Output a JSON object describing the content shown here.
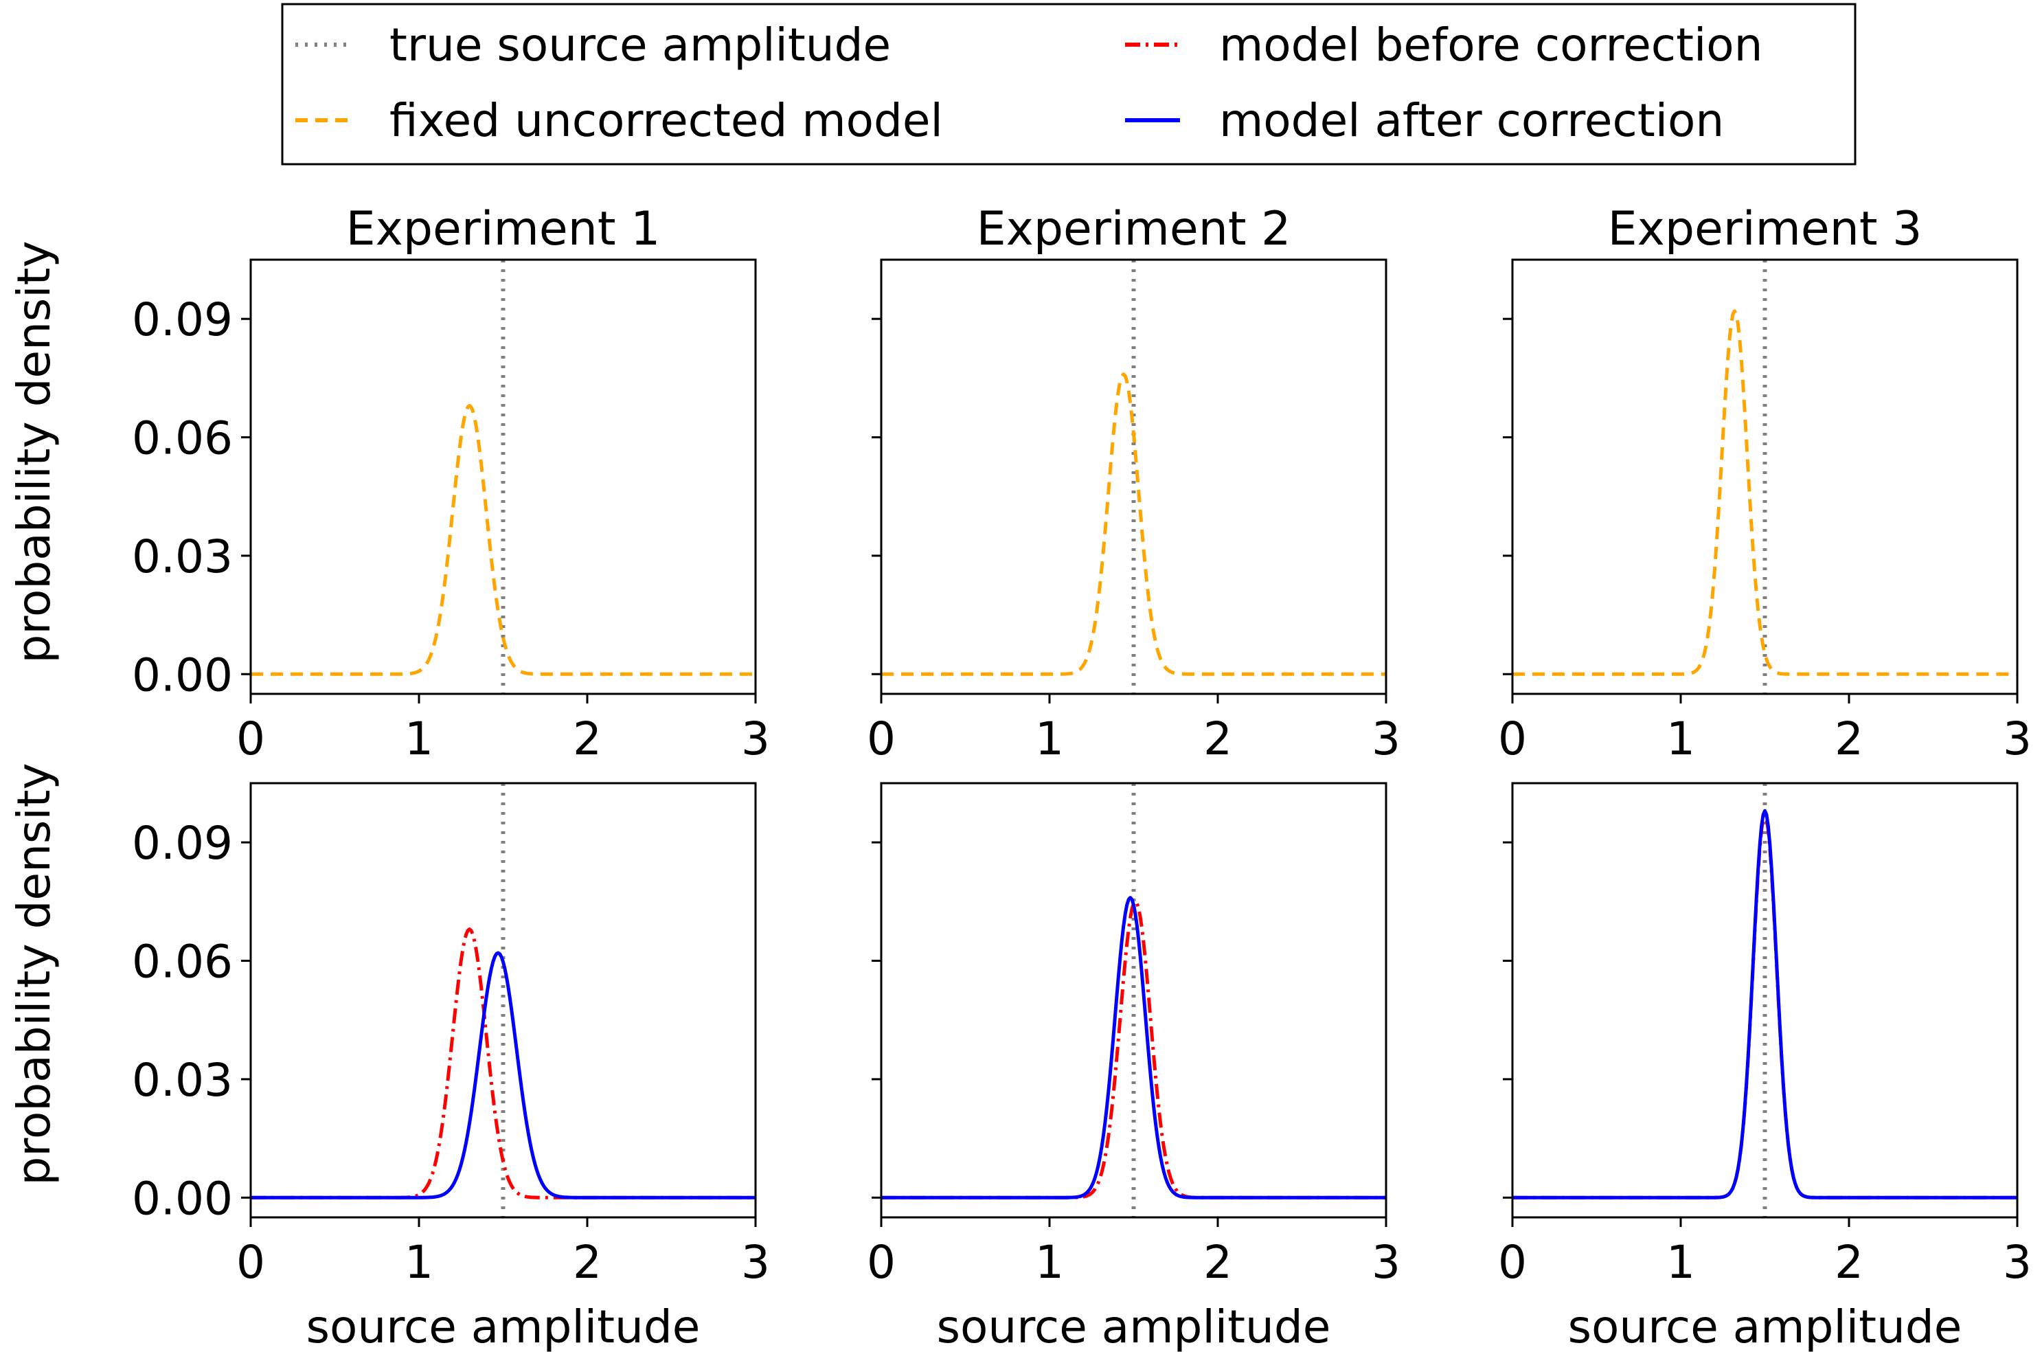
{
  "chart_data": {
    "type": "line",
    "layout": "2x3 grid",
    "legend": {
      "location": "top-center",
      "entries": [
        {
          "key": "true",
          "label": "true source amplitude",
          "color": "#808080",
          "style": "dotted"
        },
        {
          "key": "fixed",
          "label": "fixed uncorrected model",
          "color": "#FFA500",
          "style": "dashed"
        },
        {
          "key": "before",
          "label": "model before correction",
          "color": "#FF0000",
          "style": "dashdot"
        },
        {
          "key": "after",
          "label": "model after correction",
          "color": "#0000FF",
          "style": "solid"
        }
      ]
    },
    "xlabel": "source amplitude",
    "ylabel": "probability density",
    "xlim": [
      0,
      3
    ],
    "ylim": [
      -0.005,
      0.105
    ],
    "xticks": [
      0,
      1,
      2,
      3
    ],
    "yticks": [
      0.0,
      0.03,
      0.06,
      0.09
    ],
    "ytick_labels": [
      "0.00",
      "0.03",
      "0.06",
      "0.09"
    ],
    "true_amplitude": 1.5,
    "columns": [
      {
        "title": "Experiment 1"
      },
      {
        "title": "Experiment 2"
      },
      {
        "title": "Experiment 3"
      }
    ],
    "panels": [
      {
        "row": 0,
        "col": 0,
        "series": [
          {
            "key": "fixed",
            "peak_x": 1.3,
            "peak_y": 0.068,
            "sigma": 0.1
          }
        ]
      },
      {
        "row": 0,
        "col": 1,
        "series": [
          {
            "key": "fixed",
            "peak_x": 1.44,
            "peak_y": 0.076,
            "sigma": 0.09
          }
        ]
      },
      {
        "row": 0,
        "col": 2,
        "series": [
          {
            "key": "fixed",
            "peak_x": 1.32,
            "peak_y": 0.092,
            "sigma": 0.075
          }
        ]
      },
      {
        "row": 1,
        "col": 0,
        "series": [
          {
            "key": "before",
            "peak_x": 1.3,
            "peak_y": 0.068,
            "sigma": 0.1
          },
          {
            "key": "after",
            "peak_x": 1.47,
            "peak_y": 0.062,
            "sigma": 0.11
          }
        ]
      },
      {
        "row": 1,
        "col": 1,
        "series": [
          {
            "key": "before",
            "peak_x": 1.51,
            "peak_y": 0.075,
            "sigma": 0.09
          },
          {
            "key": "after",
            "peak_x": 1.48,
            "peak_y": 0.076,
            "sigma": 0.09
          }
        ]
      },
      {
        "row": 1,
        "col": 2,
        "series": [
          {
            "key": "before",
            "peak_x": 1.5,
            "peak_y": 0.097,
            "sigma": 0.07
          },
          {
            "key": "after",
            "peak_x": 1.5,
            "peak_y": 0.098,
            "sigma": 0.07
          }
        ]
      }
    ]
  }
}
